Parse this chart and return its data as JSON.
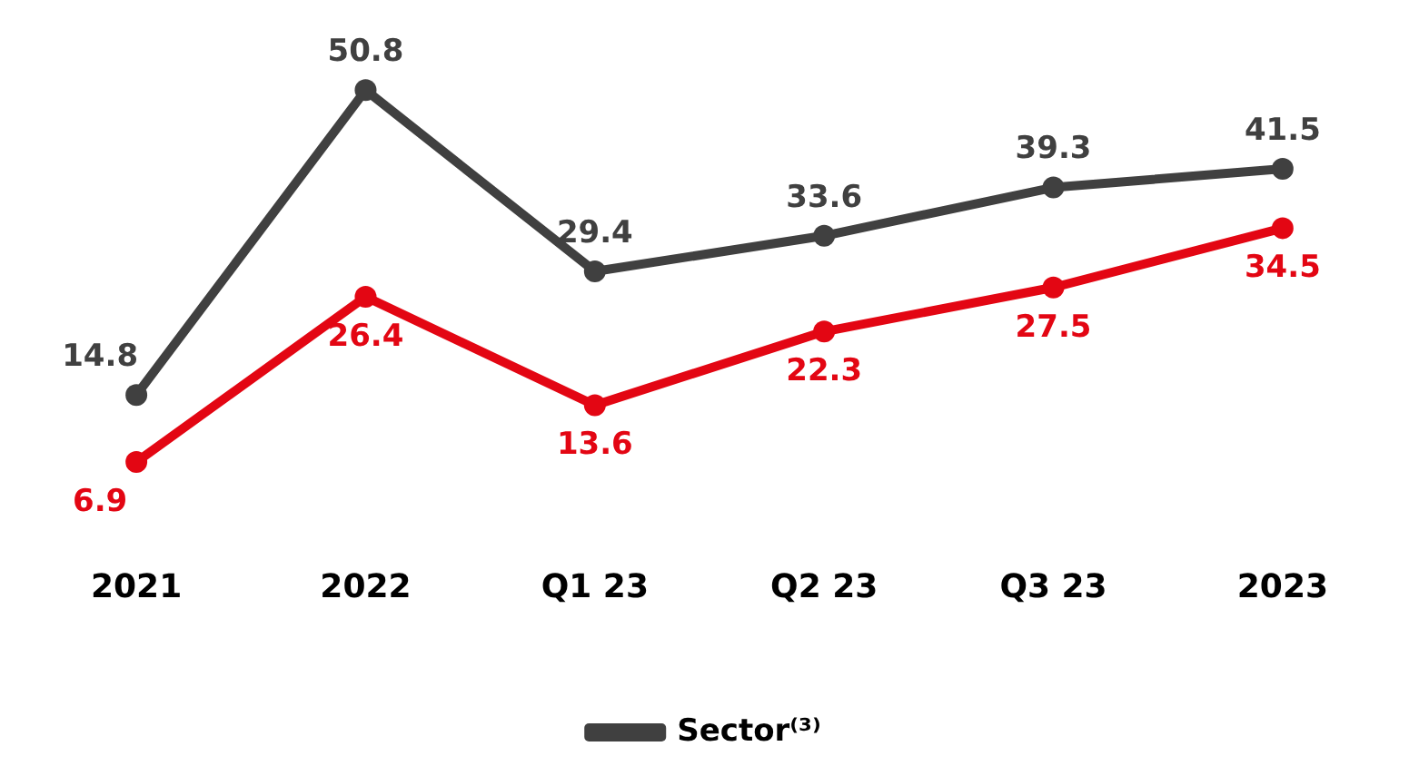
{
  "chart_data": {
    "type": "line",
    "categories": [
      "2021",
      "2022",
      "Q1 23",
      "Q2 23",
      "Q3 23",
      "2023"
    ],
    "series": [
      {
        "color": "#e30613",
        "values": [
          6.9,
          26.4,
          13.6,
          22.3,
          27.5,
          34.5
        ]
      },
      {
        "name": "Sector⁽³⁾",
        "color": "#404040",
        "values": [
          14.8,
          50.8,
          29.4,
          33.6,
          39.3,
          41.5
        ]
      }
    ],
    "data_labels": true,
    "marker": "circle",
    "line_style": "solid",
    "grid": false,
    "legend": "bottom"
  }
}
